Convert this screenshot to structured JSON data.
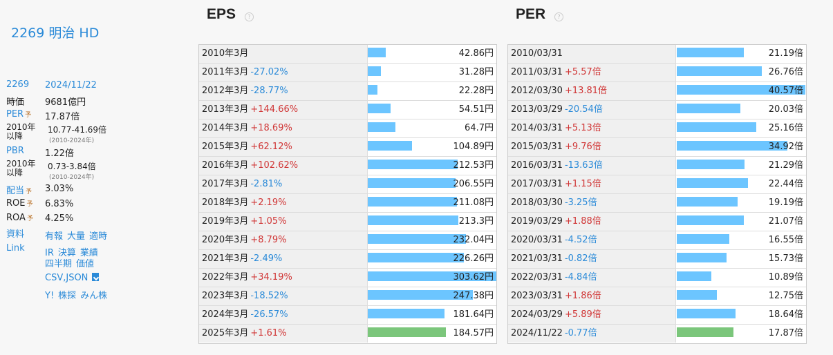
{
  "company": "2269 明治 HD",
  "info": {
    "code": "2269",
    "date": "2024/11/22",
    "mcap_label": "時価",
    "mcap_value": "9681億円",
    "per_label": "PER",
    "yo": "予",
    "per_value": "17.87倍",
    "since_label_1": "2010年",
    "since_label_2": "以降",
    "per_range": "10.77-41.69倍",
    "per_range_sub": "(2010-2024年)",
    "pbr_label": "PBR",
    "pbr_value": "1.22倍",
    "pbr_range": "0.73-3.84倍",
    "pbr_range_sub": "(2010-2024年)",
    "div_label": "配当",
    "div_value": "3.03%",
    "roe_label": "ROE",
    "roe_value": "6.83%",
    "roa_label": "ROA",
    "roa_value": "4.25%",
    "docs_label": "資料",
    "docs_links": [
      "有報",
      "大量",
      "適時"
    ],
    "link_label": "Link",
    "link_row1": [
      "IR",
      "決算",
      "業績"
    ],
    "link_row2": [
      "四半期",
      "価値"
    ],
    "csv_json": "CSV,JSON",
    "link_row3": [
      "Y!",
      "株探",
      "みん株"
    ]
  },
  "eps": {
    "title": "EPS",
    "help": "?",
    "rows": [
      {
        "period": "2010年3月",
        "change": "",
        "value": "42.86円",
        "bar": 42.86
      },
      {
        "period": "2011年3月",
        "change": "-27.02%",
        "value": "31.28円",
        "bar": 31.28
      },
      {
        "period": "2012年3月",
        "change": "-28.77%",
        "value": "22.28円",
        "bar": 22.28
      },
      {
        "period": "2013年3月",
        "change": "+144.66%",
        "value": "54.51円",
        "bar": 54.51
      },
      {
        "period": "2014年3月",
        "change": "+18.69%",
        "value": "64.7円",
        "bar": 64.7
      },
      {
        "period": "2015年3月",
        "change": "+62.12%",
        "value": "104.89円",
        "bar": 104.89
      },
      {
        "period": "2016年3月",
        "change": "+102.62%",
        "value": "212.53円",
        "bar": 212.53
      },
      {
        "period": "2017年3月",
        "change": "-2.81%",
        "value": "206.55円",
        "bar": 206.55
      },
      {
        "period": "2018年3月",
        "change": "+2.19%",
        "value": "211.08円",
        "bar": 211.08
      },
      {
        "period": "2019年3月",
        "change": "+1.05%",
        "value": "213.3円",
        "bar": 213.3
      },
      {
        "period": "2020年3月",
        "change": "+8.79%",
        "value": "232.04円",
        "bar": 232.04
      },
      {
        "period": "2021年3月",
        "change": "-2.49%",
        "value": "226.26円",
        "bar": 226.26
      },
      {
        "period": "2022年3月",
        "change": "+34.19%",
        "value": "303.62円",
        "bar": 303.62
      },
      {
        "period": "2023年3月",
        "change": "-18.52%",
        "value": "247.38円",
        "bar": 247.38
      },
      {
        "period": "2024年3月",
        "change": "-26.57%",
        "value": "181.64円",
        "bar": 181.64
      },
      {
        "period": "2025年3月",
        "change": "+1.61%",
        "value": "184.57円",
        "bar": 184.57,
        "forecast": true
      }
    ]
  },
  "per": {
    "title": "PER",
    "help": "?",
    "rows": [
      {
        "period": "2010/03/31",
        "change": "",
        "value": "21.19倍",
        "bar": 21.19
      },
      {
        "period": "2011/03/31",
        "change": "+5.57倍",
        "value": "26.76倍",
        "bar": 26.76
      },
      {
        "period": "2012/03/30",
        "change": "+13.81倍",
        "value": "40.57倍",
        "bar": 40.57
      },
      {
        "period": "2013/03/29",
        "change": "-20.54倍",
        "value": "20.03倍",
        "bar": 20.03
      },
      {
        "period": "2014/03/31",
        "change": "+5.13倍",
        "value": "25.16倍",
        "bar": 25.16
      },
      {
        "period": "2015/03/31",
        "change": "+9.76倍",
        "value": "34.92倍",
        "bar": 34.92
      },
      {
        "period": "2016/03/31",
        "change": "-13.63倍",
        "value": "21.29倍",
        "bar": 21.29
      },
      {
        "period": "2017/03/31",
        "change": "+1.15倍",
        "value": "22.44倍",
        "bar": 22.44
      },
      {
        "period": "2018/03/30",
        "change": "-3.25倍",
        "value": "19.19倍",
        "bar": 19.19
      },
      {
        "period": "2019/03/29",
        "change": "+1.88倍",
        "value": "21.07倍",
        "bar": 21.07
      },
      {
        "period": "2020/03/31",
        "change": "-4.52倍",
        "value": "16.55倍",
        "bar": 16.55
      },
      {
        "period": "2021/03/31",
        "change": "-0.82倍",
        "value": "15.73倍",
        "bar": 15.73
      },
      {
        "period": "2022/03/31",
        "change": "-4.84倍",
        "value": "10.89倍",
        "bar": 10.89
      },
      {
        "period": "2023/03/31",
        "change": "+1.86倍",
        "value": "12.75倍",
        "bar": 12.75
      },
      {
        "period": "2024/03/29",
        "change": "+5.89倍",
        "value": "18.64倍",
        "bar": 18.64
      },
      {
        "period": "2024/11/22",
        "change": "-0.77倍",
        "value": "17.87倍",
        "bar": 17.87,
        "forecast": true
      }
    ]
  },
  "colors": {
    "bar": "#6cc5ff",
    "bar_current": "#7bc67b",
    "positive": "#d03535",
    "negative": "#2a8ad8",
    "link": "#2a8ad8"
  }
}
